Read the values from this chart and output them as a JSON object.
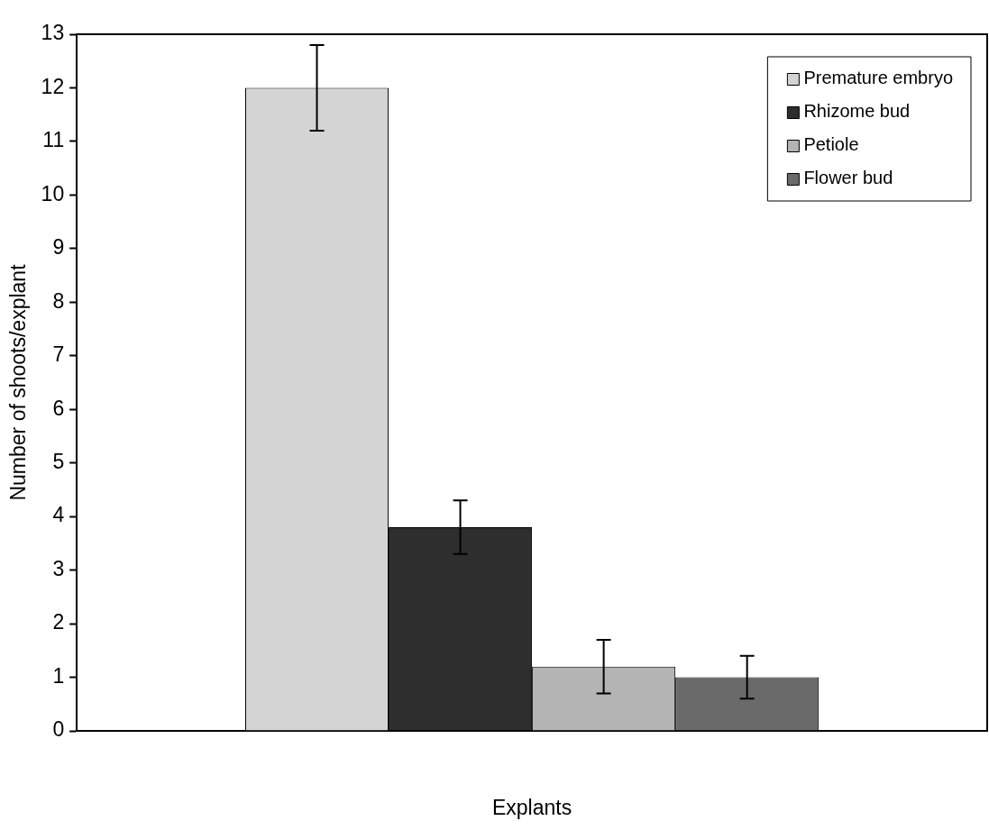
{
  "chart_data": {
    "type": "bar",
    "xlabel": "Explants",
    "ylabel": "Number of shoots/explant",
    "categories": [
      null
    ],
    "series": [
      {
        "name": "Premature embryo",
        "color": "#d4d4d4",
        "values": [
          12
        ],
        "errors": [
          0.8
        ]
      },
      {
        "name": "Rhizome bud",
        "color": "#2e2e2e",
        "values": [
          3.8
        ],
        "errors": [
          0.5
        ]
      },
      {
        "name": "Petiole",
        "color": "#b4b4b4",
        "values": [
          1.2
        ],
        "errors": [
          0.5
        ]
      },
      {
        "name": "Flower bud",
        "color": "#6a6a6a",
        "values": [
          1.0
        ],
        "errors": [
          0.4
        ]
      }
    ],
    "ylim": [
      0,
      13
    ],
    "yticks": [
      0,
      1,
      2,
      3,
      4,
      5,
      6,
      7,
      8,
      9,
      10,
      11,
      12,
      13
    ],
    "grid": false,
    "legend": "top right"
  }
}
